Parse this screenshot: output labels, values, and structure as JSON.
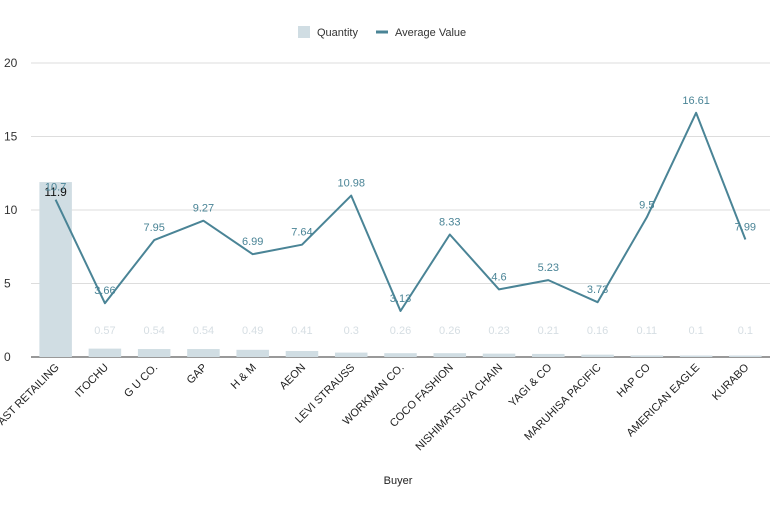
{
  "chart_data": {
    "type": "bar+line",
    "title": "",
    "xlabel": "Buyer",
    "ylabel": "",
    "ylim": [
      0,
      20
    ],
    "yticks": [
      0,
      5,
      10,
      15,
      20
    ],
    "grid": "horizontal",
    "legend_position": "top-center",
    "categories": [
      "FAST RETAILING",
      "ITOCHU",
      "G U CO.",
      "GAP",
      "H & M",
      "AEON",
      "LEVI STRAUSS",
      "WORKMAN CO.",
      "COCO FASHION",
      "NISHIMATSUYA CHAIN",
      "YAGI & CO",
      "MARUHISA PACIFIC",
      "HAP CO",
      "AMERICAN EAGLE",
      "KURABO"
    ],
    "category_labels": [
      "AST RETAILING",
      "ITOCHU",
      "G U CO.",
      "GAP",
      "H & M",
      "AEON",
      "LEVI STRAUSS",
      "WORKMAN CO.",
      "COCO FASHION",
      "NISHIMATSUYA CHAIN",
      "YAGI & CO",
      "MARUHISA PACIFIC",
      "HAP CO",
      "AMERICAN EAGLE",
      "KURABO"
    ],
    "series": [
      {
        "name": "Quantity",
        "type": "bar",
        "color": "#d0dde3",
        "values": [
          11.9,
          0.57,
          0.54,
          0.54,
          0.49,
          0.41,
          0.3,
          0.26,
          0.26,
          0.23,
          0.21,
          0.16,
          0.11,
          0.1,
          0.1
        ]
      },
      {
        "name": "Average Value",
        "type": "line",
        "color": "#4a8496",
        "values": [
          10.7,
          3.66,
          7.95,
          9.27,
          6.99,
          7.64,
          10.98,
          3.13,
          8.33,
          4.6,
          5.23,
          3.73,
          9.5,
          16.61,
          7.99
        ]
      }
    ]
  }
}
